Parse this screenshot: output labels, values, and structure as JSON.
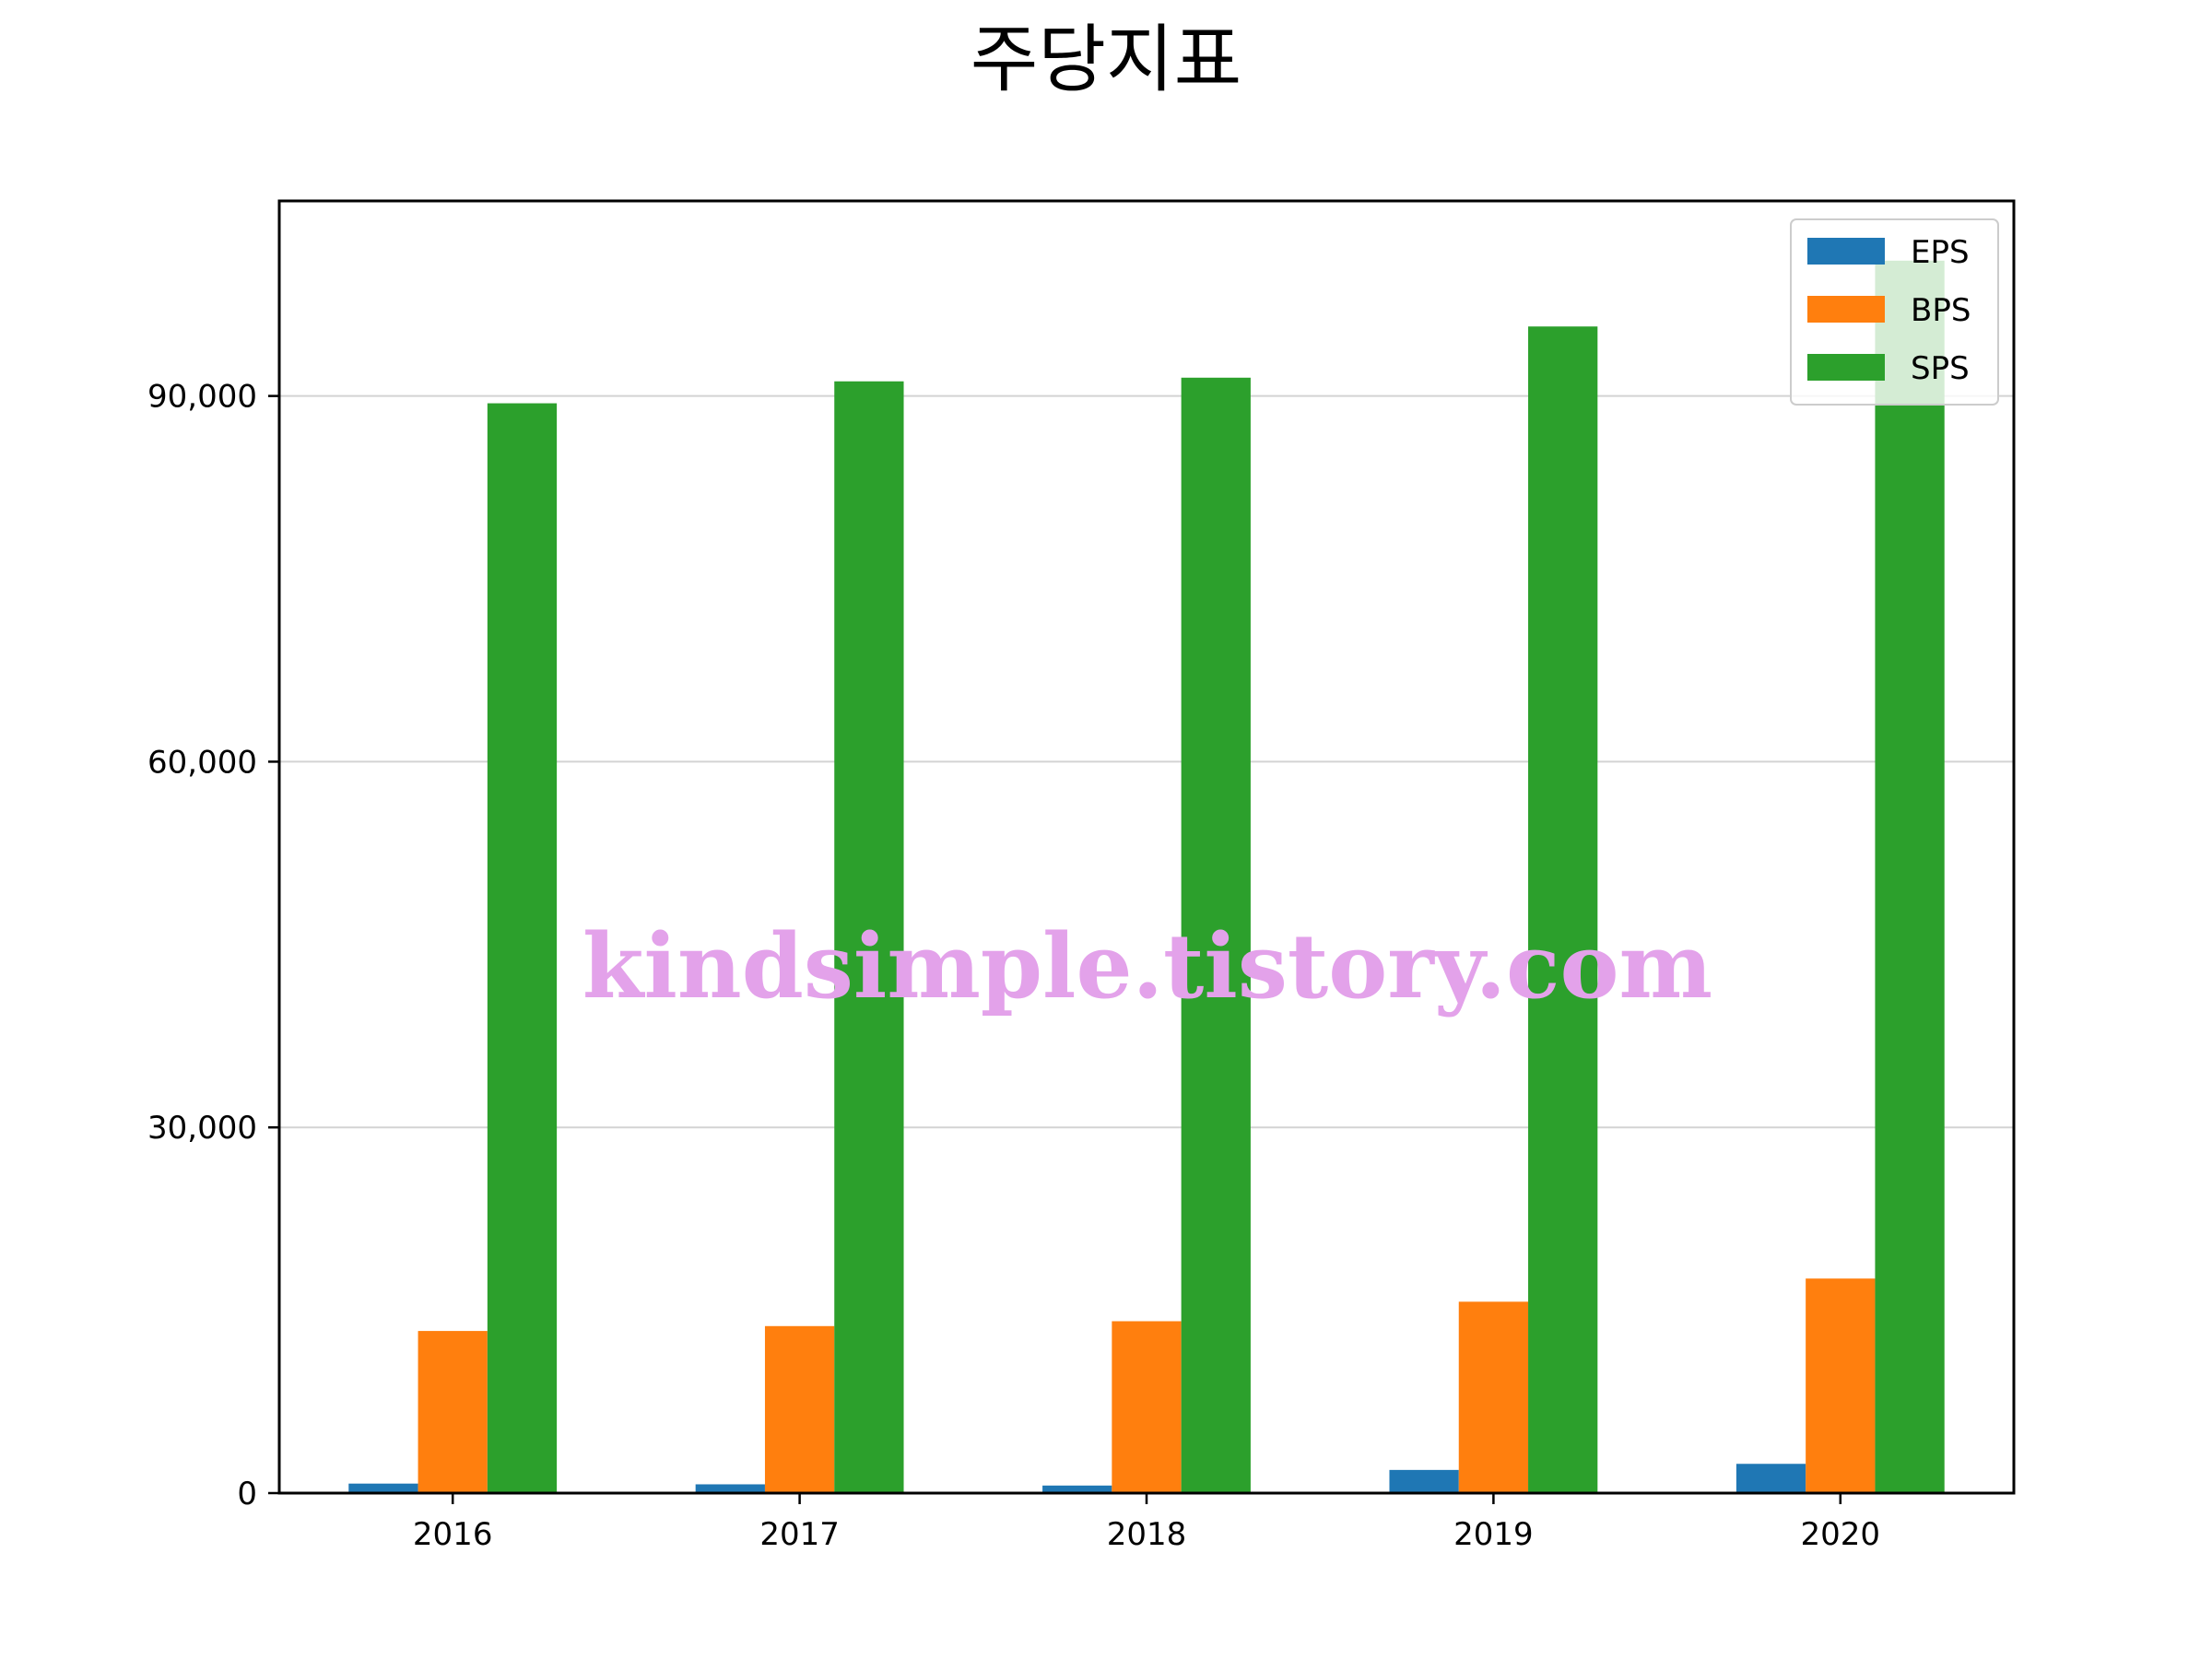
{
  "chart_data": {
    "type": "bar",
    "title": "주당지표",
    "categories": [
      "2016",
      "2017",
      "2018",
      "2019",
      "2020"
    ],
    "series": [
      {
        "name": "EPS",
        "color": "#1f77b4",
        "values": [
          780,
          720,
          620,
          1900,
          2400
        ]
      },
      {
        "name": "BPS",
        "color": "#ff7f0e",
        "values": [
          13300,
          13700,
          14100,
          15700,
          17600
        ]
      },
      {
        "name": "SPS",
        "color": "#2ca02c",
        "values": [
          89400,
          91200,
          91500,
          95700,
          101100
        ]
      }
    ],
    "ylim": [
      0,
      106000
    ],
    "yticks": [
      0,
      30000,
      60000,
      90000
    ],
    "ytick_labels": [
      "0",
      "30,000",
      "60,000",
      "90,000"
    ],
    "grid": "horizontal",
    "legend_position": "top-right",
    "xlabel": "",
    "ylabel": ""
  },
  "watermark": "kindsimple.tistory.com"
}
